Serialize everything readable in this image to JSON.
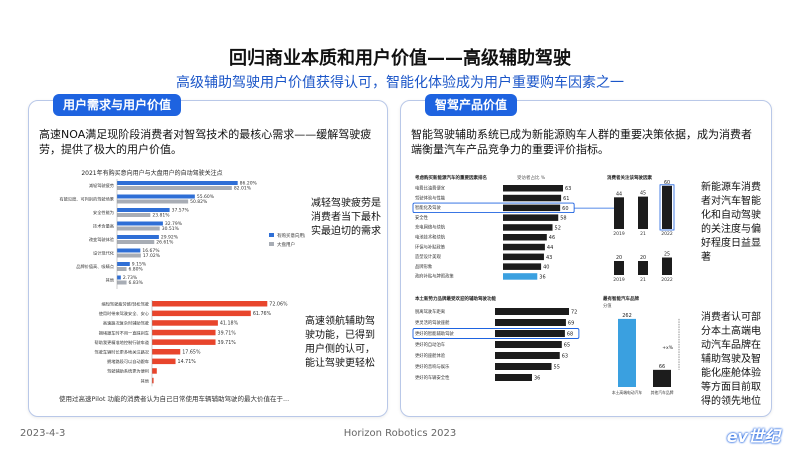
{
  "header": {
    "title": "回归商业本质和用户价值——高级辅助驾驶",
    "subtitle": "高级辅助驾驶用户价值获得认可，智能化体验成为用户重要购车因素之一"
  },
  "left_panel": {
    "tab": "用户需求与用户价值",
    "text": "高速NOA满足现阶段消费者对智驾技术的最核心需求——缓解驾驶疲劳，提供了极大的用户价值。",
    "note1": "减轻驾驶疲劳是消费者当下最朴实最迫切的需求",
    "note2": "高速领航辅助驾驶功能，已得到用户侧的认可，能让驾驶更轻松",
    "caption": "使用过高速Pilot 功能的消费者认为自己日常使用车辆辅助驾驶的最大价值在于..."
  },
  "right_panel": {
    "tab": "智驾产品价值",
    "text": "智能驾驶辅助系统已成为新能源购车人群的重要决策依据，成为消费者端衡量汽车产品竞争力的重要评价指标。",
    "note1": "新能源车消费者对汽车智能化和自动驾驶的关注度与偏好程度日益显著",
    "note2": "消费者认可部分本土高端电动汽车品牌在辅助驾驶及智能化座舱体验等方面目前取得的领先地位"
  },
  "footer": {
    "date": "2023-4-3",
    "company": "Horizon Robotics 2023",
    "watermark": "ev世纪"
  },
  "colors": {
    "accent": "#1e63e0",
    "bar_blue": "#2f6fd6",
    "bar_gray": "#a8adb5",
    "bar_red": "#e8452c",
    "bar_dark": "#1c1c1c",
    "bar_lightblue": "#3aa0e0"
  },
  "chart_data": [
    {
      "type": "bar",
      "title": "2021年有购买意向用户与大盘用户的自动驾驶关注点",
      "categories": [
        "减轻驾驶疲劳",
        "有能见度、可判别的驾驶场景",
        "安全性能为",
        "技术含量高",
        "改变驾驶体验",
        "设计现代化",
        "品牌价值高、吸睛点",
        "其他"
      ],
      "series": [
        {
          "name": "有购买意向用户",
          "values": [
            86.2,
            55.6,
            37.57,
            32.79,
            29.92,
            16.67,
            9.15,
            2.73
          ]
        },
        {
          "name": "大盘用户",
          "values": [
            82.01,
            50.82,
            23.81,
            30.51,
            26.61,
            17.02,
            6.8,
            6.83
          ]
        }
      ],
      "labels": [
        [
          "86.20%",
          "55.60%",
          "37.57%",
          "32.79%",
          "29.92%",
          "16.67%",
          "9.15%",
          "2.73%"
        ],
        [
          "82.01%",
          "50.82%",
          "23.81%",
          "30.51%",
          "26.61%",
          "17.02%",
          "6.80%",
          "6.83%"
        ]
      ],
      "legend": "right"
    },
    {
      "type": "bar",
      "categories": [
        "缩短驾驶疲劳感/轻松驾驶",
        "使用时带来驾驶安全、安心",
        "高速路况复杂时辅助驾驶",
        "拥堵跟车时不用一直踩刹车",
        "帮助我更精准地控制行驶车道",
        "驾驶车辆时长更多地关注路况",
        "拥堵路段可以自动跟车",
        "驾驶辅助系统更为便利",
        "其他"
      ],
      "values": [
        72.06,
        61.76,
        41.18,
        39.71,
        39.71,
        17.65,
        14.71,
        3.0,
        1.0
      ],
      "labels": [
        "72.06%",
        "61.76%",
        "41.18%",
        "39.71%",
        "39.71%",
        "17.65%",
        "14.71%",
        "",
        ""
      ]
    },
    {
      "type": "bar",
      "title": "考虑购买新能源汽车的重要因素排名",
      "unit": "受访者占比 %",
      "categories": [
        "电费比油费便宜",
        "驾驶体验与性能",
        "智能化及驾驶",
        "安全性",
        "充电网络与续航",
        "电池技术和续航",
        "环保与补贴政策",
        "造型设计美观",
        "品牌形象",
        "政府补贴与牌照政策"
      ],
      "values": [
        63,
        61,
        60,
        58,
        52,
        46,
        44,
        43,
        40,
        36
      ],
      "highlight": "智能化及驾驶"
    },
    {
      "type": "bar",
      "title": "消费者关注该驾驶因素",
      "categories": [
        "2019",
        "21",
        "2022"
      ],
      "series": [
        {
          "name": "top",
          "values": [
            44,
            45,
            60
          ]
        },
        {
          "name": "bottom",
          "values": [
            20,
            20,
            25
          ]
        }
      ]
    },
    {
      "type": "bar",
      "title": "本土新势力品牌最受欢迎的辅助驾驶功能",
      "categories": [
        "脱离驾驶车距离",
        "更灵活的驾驶座舱",
        "更好的智能辅助驾驶",
        "更好的自动泊车",
        "更好的座舱体验",
        "更好的音响与娱乐",
        "更好的车辆安全性"
      ],
      "values": [
        72,
        69,
        68,
        65,
        63,
        55,
        36
      ],
      "highlight": "更好的智能辅助驾驶"
    },
    {
      "type": "bar",
      "title": "最有智能汽车品牌",
      "unit": "分值",
      "categories": [
        "本土高端电动汽车",
        "其他汽车品牌"
      ],
      "values": [
        262,
        66
      ],
      "annotation": "+x%"
    }
  ]
}
